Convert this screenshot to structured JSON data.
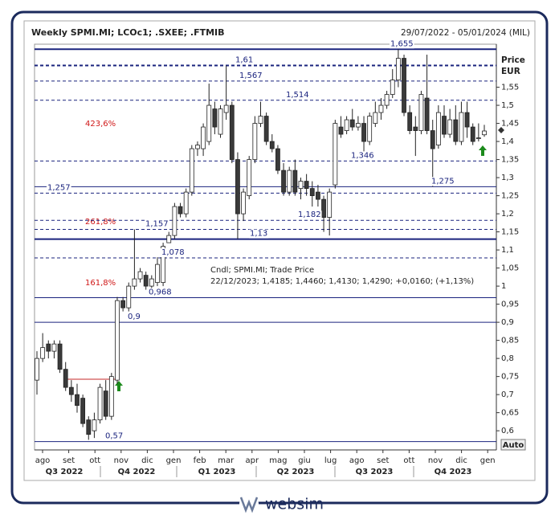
{
  "chart_data": {
    "type": "candlestick",
    "title": "Weekly SPMI.MI; LCOc1; .SXEE; .FTMIB",
    "date_range": "29/07/2022 - 05/01/2024 (MIL)",
    "axis_title": "Price",
    "axis_unit": "EUR",
    "scale_mode": "Auto",
    "annotation": [
      "Cndl; SPMI.MI; Trade Price",
      "22/12/2023; 1,4185; 1,4460; 1,4130; 1,4290; +0,0160; (+1,13%)"
    ],
    "fib_labels": [
      "423,6%",
      "261,8%",
      "161,8%"
    ],
    "months": [
      "ago",
      "set",
      "ott",
      "nov",
      "dic",
      "gen",
      "feb",
      "mar",
      "apr",
      "mag",
      "giu",
      "lug",
      "ago",
      "set",
      "ott",
      "nov",
      "dic",
      "gen"
    ],
    "quarters": [
      "Q3 2022",
      "Q4 2022",
      "Q1 2023",
      "Q2 2023",
      "Q3 2023",
      "Q4 2023"
    ],
    "up_color": "#ffffff",
    "down_color": "#3a3a3a",
    "edge_color": "#222222",
    "level_color": "#1a237e",
    "open": [
      0.74,
      0.8,
      0.84,
      0.82,
      0.84,
      0.77,
      0.72,
      0.7,
      0.69,
      0.63,
      0.6,
      0.63,
      0.71,
      0.64,
      0.74,
      0.96,
      0.94,
      1.0,
      1.02,
      1.03,
      1.0,
      1.01,
      1.01,
      1.12,
      1.14,
      1.22,
      1.2,
      1.26,
      1.38,
      1.38,
      1.4,
      1.49,
      1.42,
      1.48,
      1.5,
      1.35,
      1.2,
      1.25,
      1.35,
      1.45,
      1.47,
      1.4,
      1.38,
      1.32,
      1.26,
      1.32,
      1.27,
      1.29,
      1.27,
      1.26,
      1.24,
      1.19,
      1.28,
      1.44,
      1.43,
      1.46,
      1.44,
      1.45,
      1.4,
      1.45,
      1.48,
      1.5,
      1.53,
      1.57,
      1.63,
      1.48,
      1.44,
      1.43,
      1.52,
      1.43,
      1.39,
      1.47,
      1.42,
      1.46,
      1.4,
      1.48,
      1.44,
      1.41,
      1.4185
    ],
    "high": [
      0.82,
      0.87,
      0.85,
      0.85,
      0.85,
      0.79,
      0.74,
      0.73,
      0.7,
      0.64,
      0.65,
      0.73,
      0.74,
      0.76,
      0.97,
      0.97,
      1.01,
      1.157,
      1.05,
      1.04,
      1.03,
      1.08,
      1.12,
      1.15,
      1.23,
      1.23,
      1.27,
      1.39,
      1.4,
      1.45,
      1.56,
      1.51,
      1.5,
      1.61,
      1.51,
      1.37,
      1.27,
      1.36,
      1.47,
      1.51,
      1.48,
      1.42,
      1.39,
      1.34,
      1.33,
      1.35,
      1.3,
      1.31,
      1.29,
      1.28,
      1.25,
      1.27,
      1.46,
      1.47,
      1.47,
      1.49,
      1.47,
      1.47,
      1.48,
      1.51,
      1.52,
      1.54,
      1.6,
      1.655,
      1.64,
      1.5,
      1.47,
      1.54,
      1.64,
      1.46,
      1.5,
      1.5,
      1.49,
      1.5,
      1.51,
      1.51,
      1.45,
      1.45,
      1.446
    ],
    "low": [
      0.7,
      0.79,
      0.8,
      0.8,
      0.76,
      0.71,
      0.68,
      0.65,
      0.61,
      0.575,
      0.58,
      0.62,
      0.63,
      0.63,
      0.73,
      0.93,
      0.93,
      0.99,
      1.01,
      0.99,
      0.98,
      1.0,
      1.0,
      1.12,
      1.13,
      1.19,
      1.19,
      1.25,
      1.36,
      1.36,
      1.39,
      1.42,
      1.41,
      1.46,
      1.34,
      1.13,
      1.18,
      1.24,
      1.34,
      1.44,
      1.39,
      1.37,
      1.31,
      1.25,
      1.25,
      1.25,
      1.24,
      1.25,
      1.22,
      1.22,
      1.15,
      1.14,
      1.27,
      1.41,
      1.42,
      1.43,
      1.43,
      1.37,
      1.39,
      1.44,
      1.46,
      1.49,
      1.52,
      1.55,
      1.47,
      1.42,
      1.36,
      1.42,
      1.42,
      1.275,
      1.38,
      1.41,
      1.41,
      1.39,
      1.39,
      1.41,
      1.39,
      1.4,
      1.413
    ],
    "close": [
      0.8,
      0.83,
      0.82,
      0.84,
      0.77,
      0.72,
      0.7,
      0.67,
      0.62,
      0.59,
      0.63,
      0.72,
      0.64,
      0.75,
      0.96,
      0.94,
      1.0,
      1.02,
      1.04,
      1.0,
      1.02,
      1.06,
      1.11,
      1.14,
      1.22,
      1.2,
      1.26,
      1.38,
      1.39,
      1.44,
      1.5,
      1.44,
      1.49,
      1.5,
      1.35,
      1.2,
      1.26,
      1.35,
      1.45,
      1.47,
      1.4,
      1.38,
      1.32,
      1.26,
      1.32,
      1.26,
      1.29,
      1.27,
      1.25,
      1.24,
      1.19,
      1.26,
      1.45,
      1.42,
      1.46,
      1.44,
      1.45,
      1.4,
      1.47,
      1.48,
      1.5,
      1.53,
      1.57,
      1.63,
      1.48,
      1.43,
      1.43,
      1.53,
      1.43,
      1.38,
      1.48,
      1.42,
      1.46,
      1.4,
      1.48,
      1.44,
      1.4,
      1.41,
      1.429
    ],
    "levels": [
      {
        "value": 1.655,
        "label": "1,655",
        "style": "solid"
      },
      {
        "value": 1.61,
        "label": "1,61",
        "style": "dashed"
      },
      {
        "value": 1.567,
        "label": "1,567",
        "style": "dashed"
      },
      {
        "value": 1.514,
        "label": "1,514",
        "style": "dashed"
      },
      {
        "value": 1.346,
        "label": "1,346",
        "style": "dashed"
      },
      {
        "value": 1.275,
        "label": "1,275",
        "style": "solid"
      },
      {
        "value": 1.257,
        "label": "1,257",
        "style": "dashed"
      },
      {
        "value": 1.182,
        "label": "1,182",
        "style": "dashed"
      },
      {
        "value": 1.157,
        "label": "1,157",
        "style": "dashed"
      },
      {
        "value": 1.13,
        "label": "1,13",
        "style": "solid"
      },
      {
        "value": 1.078,
        "label": "1,078",
        "style": "dashed"
      },
      {
        "value": 0.968,
        "label": "0,968",
        "style": "solid"
      },
      {
        "value": 0.9,
        "label": "0,9",
        "style": "solid"
      },
      {
        "value": 0.57,
        "label": "0,57",
        "style": "solid"
      }
    ],
    "ylim": [
      0.547,
      1.669
    ],
    "yticks": [
      {
        "value": 0.6,
        "label": "0,6"
      },
      {
        "value": 0.65,
        "label": "0,65"
      },
      {
        "value": 0.7,
        "label": "0,7"
      },
      {
        "value": 0.75,
        "label": "0,75"
      },
      {
        "value": 0.8,
        "label": "0,8"
      },
      {
        "value": 0.85,
        "label": "0,85"
      },
      {
        "value": 0.9,
        "label": "0,9"
      },
      {
        "value": 0.95,
        "label": "0,95"
      },
      1,
      {
        "value": 1.05,
        "label": "1,05"
      },
      {
        "value": 1.1,
        "label": "1,1"
      },
      {
        "value": 1.15,
        "label": "1,15"
      },
      {
        "value": 1.2,
        "label": "1,2"
      },
      {
        "value": 1.25,
        "label": "1,25"
      },
      {
        "value": 1.3,
        "label": "1,3"
      },
      {
        "value": 1.35,
        "label": "1,35"
      },
      {
        "value": 1.4,
        "label": "1,4"
      },
      {
        "value": 1.45,
        "label": "1,45"
      },
      {
        "value": 1.5,
        "label": "1,5"
      },
      {
        "value": 1.55,
        "label": "1,55"
      }
    ]
  },
  "footer": {
    "brand": "websim"
  }
}
